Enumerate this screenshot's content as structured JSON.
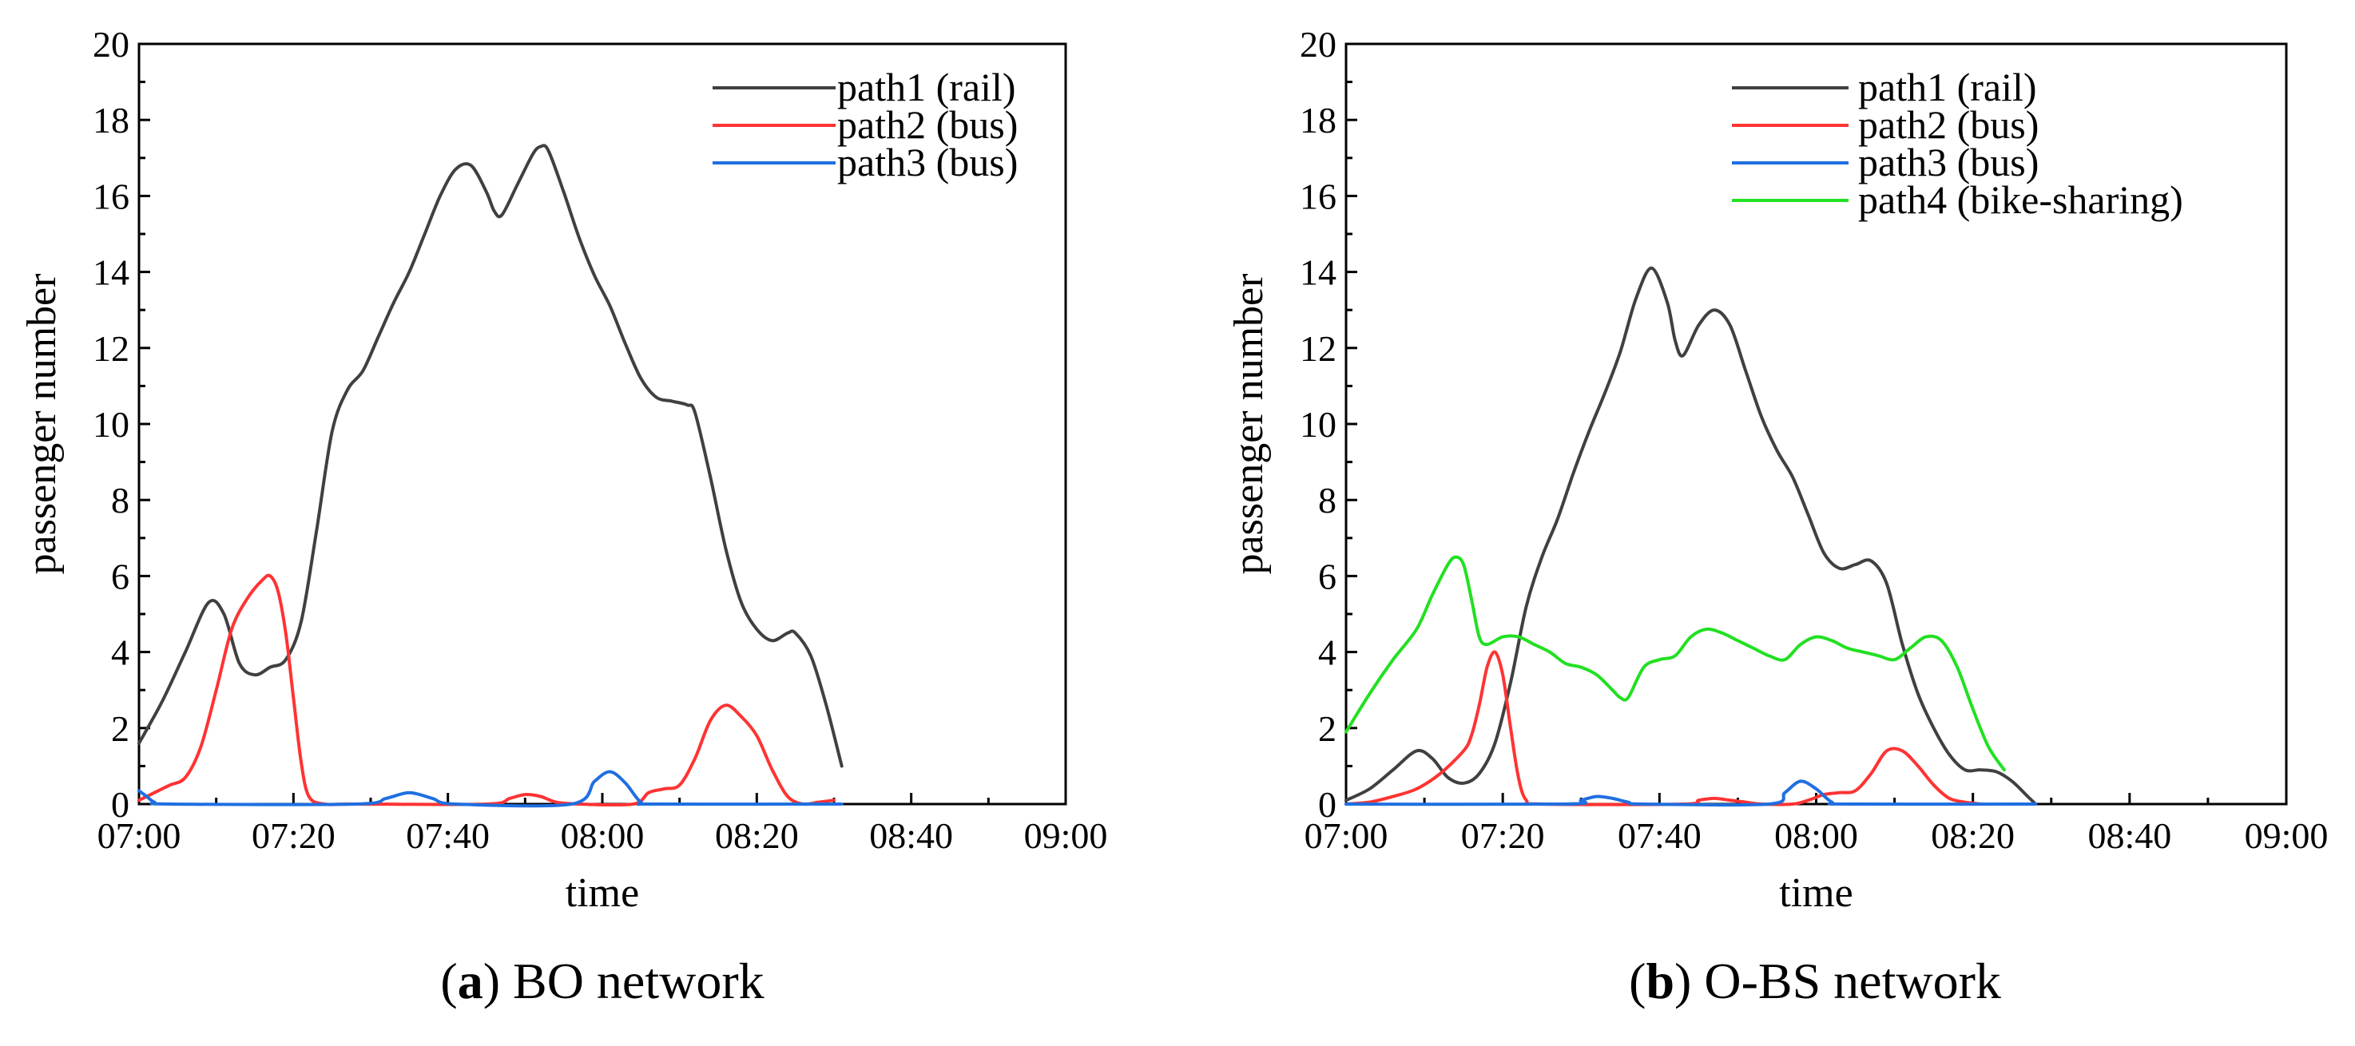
{
  "chart_data": [
    {
      "type": "line",
      "panel": "a",
      "caption_letter": "a",
      "caption_rest": " BO network",
      "xlabel": "time",
      "ylabel": "passenger number",
      "x_ticks": [
        "07:00",
        "07:20",
        "07:40",
        "08:00",
        "08:20",
        "08:40",
        "09:00"
      ],
      "x_range_minutes": [
        0,
        120
      ],
      "y_ticks": [
        "0",
        "2",
        "4",
        "6",
        "8",
        "10",
        "12",
        "14",
        "16",
        "18",
        "20"
      ],
      "ylim": [
        0,
        20
      ],
      "legend_position": "top-right",
      "series": [
        {
          "name": "path1 (rail)",
          "color": "#404040",
          "points": [
            [
              0,
              1.6
            ],
            [
              3,
              2.7
            ],
            [
              6,
              4.0
            ],
            [
              9,
              5.3
            ],
            [
              11,
              5.0
            ],
            [
              13,
              3.7
            ],
            [
              15,
              3.4
            ],
            [
              17,
              3.6
            ],
            [
              19,
              3.8
            ],
            [
              21,
              4.8
            ],
            [
              23,
              7.2
            ],
            [
              25,
              9.8
            ],
            [
              27,
              10.9
            ],
            [
              29,
              11.4
            ],
            [
              31,
              12.3
            ],
            [
              33,
              13.2
            ],
            [
              35,
              14.0
            ],
            [
              37,
              15.0
            ],
            [
              39,
              16.0
            ],
            [
              41,
              16.7
            ],
            [
              43,
              16.8
            ],
            [
              45,
              16.1
            ],
            [
              46,
              15.6
            ],
            [
              47,
              15.5
            ],
            [
              49,
              16.3
            ],
            [
              51,
              17.1
            ],
            [
              52,
              17.3
            ],
            [
              53,
              17.2
            ],
            [
              55,
              16.1
            ],
            [
              57,
              14.9
            ],
            [
              59,
              13.9
            ],
            [
              61,
              13.1
            ],
            [
              63,
              12.1
            ],
            [
              65,
              11.2
            ],
            [
              67,
              10.7
            ],
            [
              69,
              10.6
            ],
            [
              71,
              10.5
            ],
            [
              72,
              10.3
            ],
            [
              74,
              8.6
            ],
            [
              76,
              6.7
            ],
            [
              78,
              5.3
            ],
            [
              80,
              4.6
            ],
            [
              82,
              4.3
            ],
            [
              84,
              4.5
            ],
            [
              85,
              4.5
            ],
            [
              87,
              3.9
            ],
            [
              89,
              2.6
            ],
            [
              91,
              1.0
            ]
          ]
        },
        {
          "name": "path2 (bus)",
          "color": "#ff3333",
          "points": [
            [
              0,
              0.1
            ],
            [
              2,
              0.3
            ],
            [
              4,
              0.5
            ],
            [
              6,
              0.7
            ],
            [
              8,
              1.5
            ],
            [
              10,
              3.0
            ],
            [
              12,
              4.6
            ],
            [
              14,
              5.4
            ],
            [
              16,
              5.9
            ],
            [
              17,
              6.0
            ],
            [
              18,
              5.6
            ],
            [
              19,
              4.5
            ],
            [
              20,
              2.8
            ],
            [
              21,
              1.1
            ],
            [
              22,
              0.2
            ],
            [
              24,
              0.0
            ],
            [
              28,
              0.0
            ],
            [
              45,
              0.0
            ],
            [
              48,
              0.15
            ],
            [
              50,
              0.25
            ],
            [
              52,
              0.2
            ],
            [
              54,
              0.05
            ],
            [
              57,
              0.0
            ],
            [
              64,
              0.0
            ],
            [
              66,
              0.3
            ],
            [
              68,
              0.4
            ],
            [
              70,
              0.5
            ],
            [
              72,
              1.2
            ],
            [
              74,
              2.2
            ],
            [
              76,
              2.6
            ],
            [
              78,
              2.3
            ],
            [
              80,
              1.8
            ],
            [
              82,
              0.9
            ],
            [
              84,
              0.2
            ],
            [
              86,
              0.0
            ],
            [
              88,
              0.05
            ],
            [
              90,
              0.1
            ]
          ]
        },
        {
          "name": "path3 (bus)",
          "color": "#1f6fe0",
          "points": [
            [
              0,
              0.35
            ],
            [
              1,
              0.2
            ],
            [
              2,
              0.05
            ],
            [
              4,
              0.0
            ],
            [
              28,
              0.0
            ],
            [
              32,
              0.15
            ],
            [
              35,
              0.3
            ],
            [
              38,
              0.15
            ],
            [
              41,
              0.0
            ],
            [
              56,
              0.0
            ],
            [
              59,
              0.6
            ],
            [
              61,
              0.85
            ],
            [
              63,
              0.55
            ],
            [
              65,
              0.05
            ],
            [
              67,
              0.0
            ],
            [
              91,
              0.0
            ]
          ]
        }
      ]
    },
    {
      "type": "line",
      "panel": "b",
      "caption_letter": "b",
      "caption_rest": " O-BS network",
      "xlabel": "time",
      "ylabel": "passenger number",
      "x_ticks": [
        "07:00",
        "07:20",
        "07:40",
        "08:00",
        "08:20",
        "08:40",
        "09:00"
      ],
      "x_range_minutes": [
        0,
        120
      ],
      "y_ticks": [
        "0",
        "2",
        "4",
        "6",
        "8",
        "10",
        "12",
        "14",
        "16",
        "18",
        "20"
      ],
      "ylim": [
        0,
        20
      ],
      "legend_position": "top-right",
      "series": [
        {
          "name": "path1 (rail)",
          "color": "#404040",
          "points": [
            [
              0,
              0.1
            ],
            [
              3,
              0.4
            ],
            [
              6,
              0.9
            ],
            [
              9,
              1.4
            ],
            [
              11,
              1.2
            ],
            [
              13,
              0.7
            ],
            [
              15,
              0.55
            ],
            [
              17,
              0.8
            ],
            [
              19,
              1.6
            ],
            [
              21,
              3.2
            ],
            [
              23,
              5.2
            ],
            [
              25,
              6.5
            ],
            [
              27,
              7.5
            ],
            [
              29,
              8.7
            ],
            [
              31,
              9.8
            ],
            [
              33,
              10.8
            ],
            [
              35,
              11.9
            ],
            [
              37,
              13.3
            ],
            [
              39,
              14.1
            ],
            [
              41,
              13.2
            ],
            [
              42,
              12.2
            ],
            [
              43,
              11.8
            ],
            [
              45,
              12.6
            ],
            [
              47,
              13.0
            ],
            [
              49,
              12.6
            ],
            [
              51,
              11.4
            ],
            [
              53,
              10.2
            ],
            [
              55,
              9.3
            ],
            [
              57,
              8.6
            ],
            [
              59,
              7.6
            ],
            [
              61,
              6.6
            ],
            [
              63,
              6.2
            ],
            [
              65,
              6.3
            ],
            [
              67,
              6.4
            ],
            [
              69,
              5.8
            ],
            [
              71,
              4.2
            ],
            [
              73,
              2.9
            ],
            [
              75,
              2.0
            ],
            [
              77,
              1.3
            ],
            [
              79,
              0.9
            ],
            [
              81,
              0.9
            ],
            [
              83,
              0.85
            ],
            [
              85,
              0.6
            ],
            [
              87,
              0.2
            ],
            [
              88,
              0.0
            ]
          ]
        },
        {
          "name": "path2 (bus)",
          "color": "#ff3333",
          "points": [
            [
              0,
              0.0
            ],
            [
              3,
              0.05
            ],
            [
              6,
              0.2
            ],
            [
              9,
              0.4
            ],
            [
              12,
              0.8
            ],
            [
              15,
              1.4
            ],
            [
              16,
              1.8
            ],
            [
              17,
              2.6
            ],
            [
              18,
              3.6
            ],
            [
              19,
              4.0
            ],
            [
              20,
              3.4
            ],
            [
              21,
              2.0
            ],
            [
              22,
              0.7
            ],
            [
              23,
              0.1
            ],
            [
              25,
              0.0
            ],
            [
              43,
              0.0
            ],
            [
              45,
              0.1
            ],
            [
              47,
              0.15
            ],
            [
              49,
              0.1
            ],
            [
              51,
              0.05
            ],
            [
              53,
              0.0
            ],
            [
              57,
              0.0
            ],
            [
              59,
              0.1
            ],
            [
              61,
              0.25
            ],
            [
              63,
              0.3
            ],
            [
              65,
              0.35
            ],
            [
              67,
              0.8
            ],
            [
              69,
              1.4
            ],
            [
              71,
              1.4
            ],
            [
              73,
              1.0
            ],
            [
              75,
              0.5
            ],
            [
              77,
              0.15
            ],
            [
              79,
              0.05
            ],
            [
              81,
              0.0
            ]
          ]
        },
        {
          "name": "path3 (bus)",
          "color": "#1f6fe0",
          "points": [
            [
              0,
              0.0
            ],
            [
              28,
              0.0
            ],
            [
              30,
              0.1
            ],
            [
              32,
              0.2
            ],
            [
              34,
              0.15
            ],
            [
              36,
              0.05
            ],
            [
              38,
              0.0
            ],
            [
              54,
              0.0
            ],
            [
              56,
              0.3
            ],
            [
              58,
              0.6
            ],
            [
              60,
              0.4
            ],
            [
              62,
              0.05
            ],
            [
              64,
              0.0
            ],
            [
              88,
              0.0
            ]
          ]
        },
        {
          "name": "path4 (bike-sharing)",
          "color": "#22e022",
          "points": [
            [
              0,
              1.9
            ],
            [
              3,
              2.9
            ],
            [
              6,
              3.8
            ],
            [
              9,
              4.6
            ],
            [
              11,
              5.5
            ],
            [
              13,
              6.3
            ],
            [
              14,
              6.5
            ],
            [
              15,
              6.3
            ],
            [
              16,
              5.4
            ],
            [
              17,
              4.4
            ],
            [
              18,
              4.2
            ],
            [
              20,
              4.4
            ],
            [
              22,
              4.4
            ],
            [
              24,
              4.2
            ],
            [
              26,
              4.0
            ],
            [
              28,
              3.7
            ],
            [
              30,
              3.6
            ],
            [
              32,
              3.4
            ],
            [
              34,
              3.0
            ],
            [
              35,
              2.8
            ],
            [
              36,
              2.8
            ],
            [
              38,
              3.6
            ],
            [
              40,
              3.8
            ],
            [
              42,
              3.9
            ],
            [
              44,
              4.4
            ],
            [
              46,
              4.6
            ],
            [
              48,
              4.5
            ],
            [
              50,
              4.3
            ],
            [
              52,
              4.1
            ],
            [
              54,
              3.9
            ],
            [
              56,
              3.8
            ],
            [
              58,
              4.2
            ],
            [
              60,
              4.4
            ],
            [
              62,
              4.3
            ],
            [
              64,
              4.1
            ],
            [
              66,
              4.0
            ],
            [
              68,
              3.9
            ],
            [
              70,
              3.8
            ],
            [
              72,
              4.1
            ],
            [
              74,
              4.4
            ],
            [
              76,
              4.3
            ],
            [
              78,
              3.6
            ],
            [
              80,
              2.5
            ],
            [
              82,
              1.5
            ],
            [
              84,
              0.9
            ]
          ]
        }
      ]
    }
  ]
}
